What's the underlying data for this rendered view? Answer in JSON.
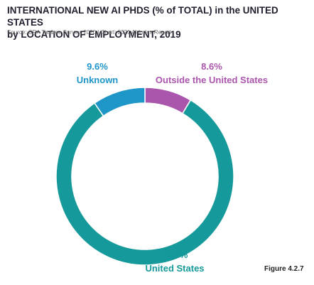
{
  "header": {
    "title_line1": "INTERNATIONAL NEW AI PHDS (% of TOTAL) in the UNITED STATES",
    "title_line2": "by LOCATION OF EMPLOYMENT, 2019",
    "source": "Source: CRA Taulbee Survey, 2020 | Chart: 2021 AI Index Report"
  },
  "figure_label": "Figure 4.2.7",
  "colors": {
    "united_states": "#15999a",
    "unknown": "#1e96c8",
    "outside_us": "#ab56ad",
    "background": "#ffffff"
  },
  "chart_data": {
    "type": "pie",
    "title": "INTERNATIONAL NEW AI PHDS (% of TOTAL) in the UNITED STATES by LOCATION OF EMPLOYMENT, 2019",
    "donut": true,
    "slices": [
      {
        "name": "Outside the United States",
        "value": 8.6,
        "label": "8.6%",
        "color": "#ab56ad"
      },
      {
        "name": "United States",
        "value": 81.8,
        "label": "81.8%",
        "color": "#15999a"
      },
      {
        "name": "Unknown",
        "value": 9.6,
        "label": "9.6%",
        "color": "#1e96c8"
      }
    ]
  }
}
